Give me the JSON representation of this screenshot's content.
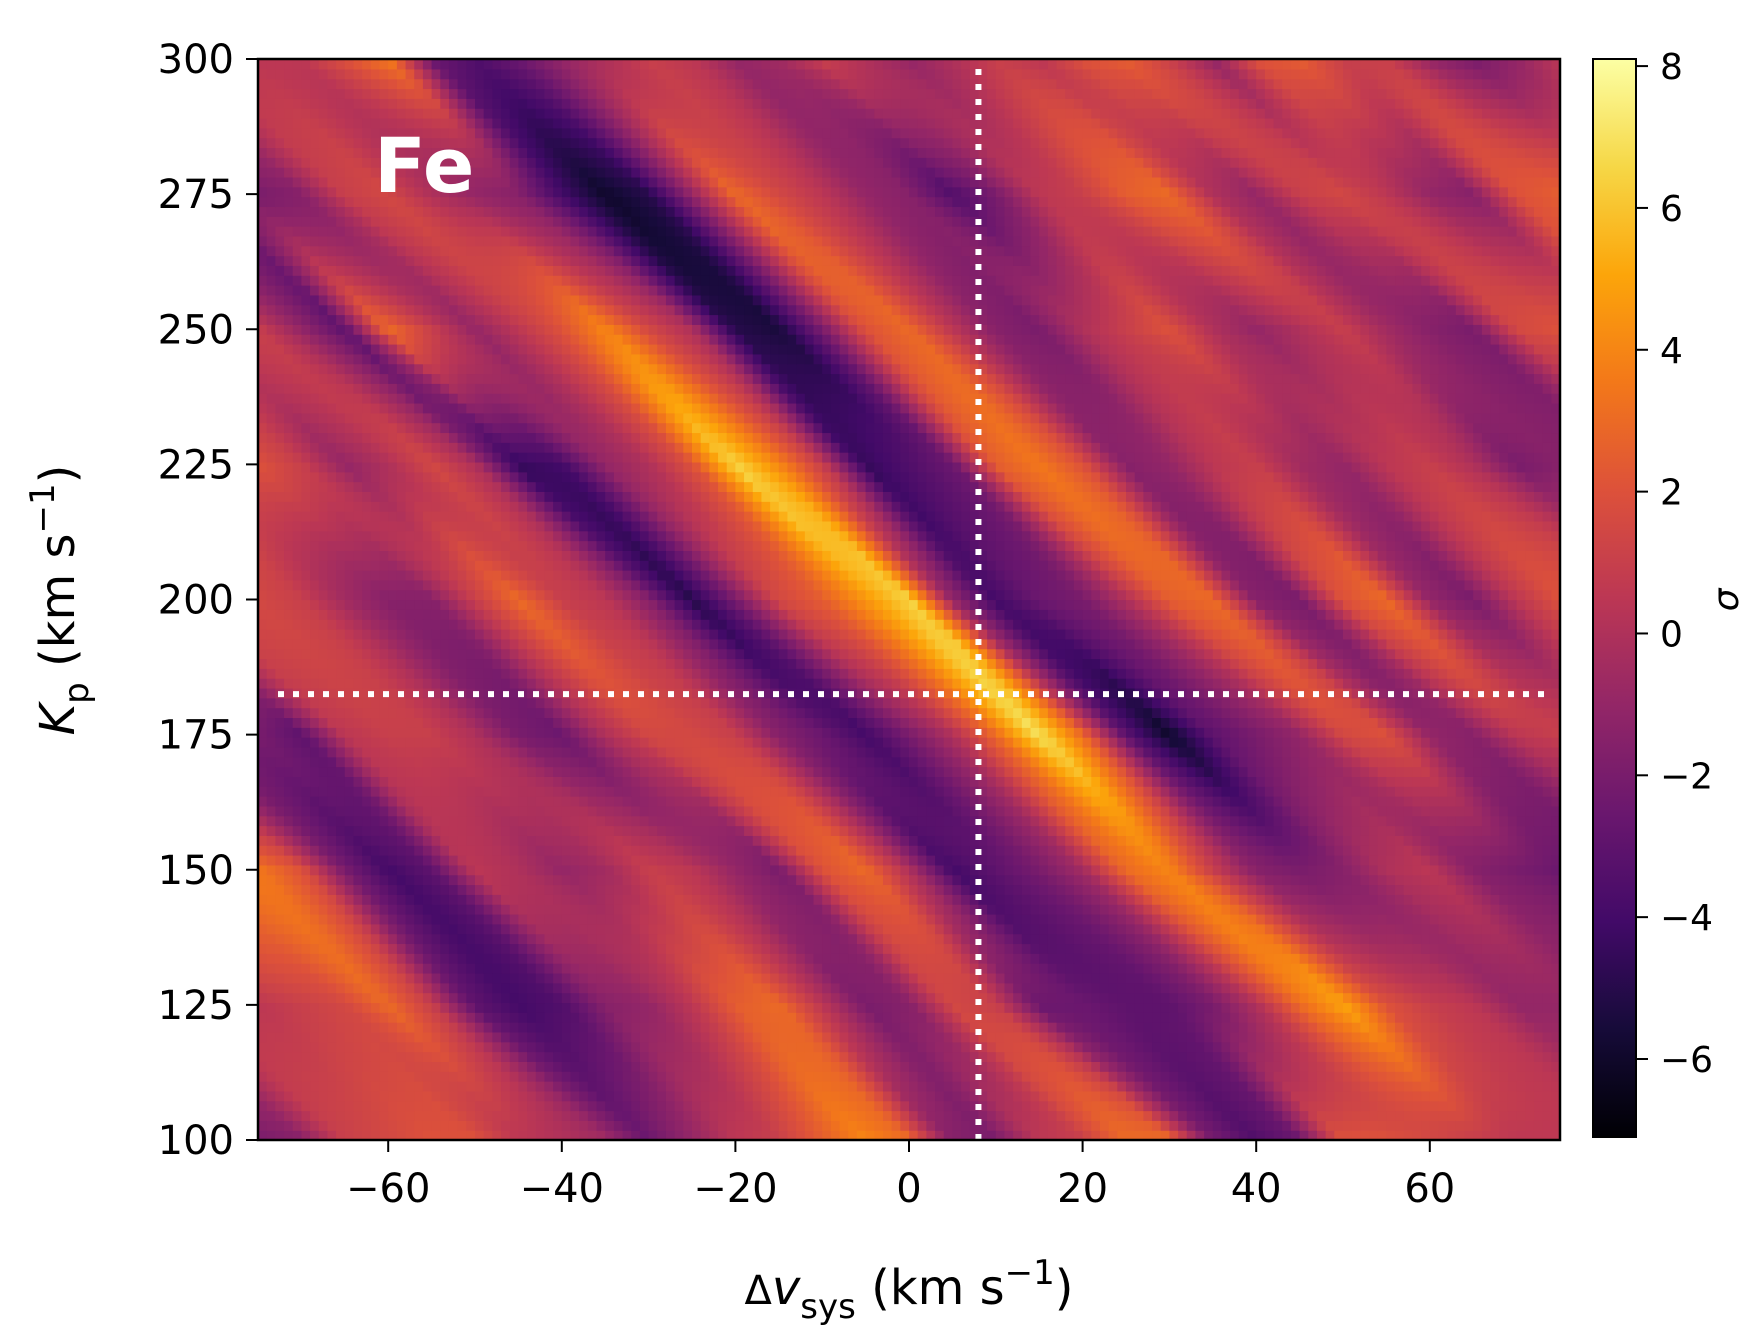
{
  "chart_data": {
    "type": "heatmap",
    "annotation": "Fe",
    "xlabel": {
      "prefix": "Δ",
      "main": "v",
      "sub": "sys",
      "unit": " (km s",
      "sup": "−1",
      "close": ")"
    },
    "ylabel": {
      "main": "K",
      "sub": "p",
      "unit": " (km s",
      "sup": "−1",
      "close": ")"
    },
    "colorbar_label": "σ",
    "colormap": "inferno",
    "clim": [
      -7.1,
      8.1
    ],
    "colorbar_ticks": [
      -6,
      -4,
      -2,
      0,
      2,
      4,
      6,
      8
    ],
    "colorbar_tick_labels": [
      "−6",
      "−4",
      "−2",
      "0",
      "2",
      "4",
      "6",
      "8"
    ],
    "xlim": [
      -75,
      75
    ],
    "ylim": [
      100,
      300
    ],
    "xticks": [
      -60,
      -40,
      -20,
      0,
      20,
      40,
      60
    ],
    "xtick_labels": [
      "−60",
      "−40",
      "−20",
      "0",
      "20",
      "40",
      "60"
    ],
    "yticks": [
      100,
      125,
      150,
      175,
      200,
      225,
      250,
      275,
      300
    ],
    "ytick_labels": [
      "100",
      "125",
      "150",
      "175",
      "200",
      "225",
      "250",
      "275",
      "300"
    ],
    "grid": false,
    "reference_lines": {
      "x": 8.0,
      "y": 182.5,
      "style": "dotted",
      "color": "#ffffff"
    },
    "x": [
      -75,
      -70,
      -65,
      -60,
      -55,
      -50,
      -45,
      -40,
      -35,
      -30,
      -25,
      -20,
      -15,
      -10,
      -5,
      0,
      5,
      10,
      15,
      20,
      25,
      30,
      35,
      40,
      45,
      50,
      55,
      60,
      65,
      70,
      75
    ],
    "y": [
      100,
      125,
      150,
      175,
      200,
      225,
      250,
      275,
      300
    ],
    "z": [
      [
        -2,
        -1.5,
        1,
        1.5,
        2,
        2,
        0.5,
        0,
        -0.5,
        -2.5,
        -1,
        0.5,
        1,
        2.5,
        4,
        3,
        -1.5,
        -2,
        0.5,
        1,
        3,
        3,
        -2,
        -3.5,
        -2.5,
        2,
        2,
        1.5,
        1,
        0.5,
        0.5
      ],
      [
        0.5,
        1,
        1.5,
        3,
        1,
        -3,
        -4,
        -3.5,
        -1.5,
        -1,
        0.5,
        2.5,
        3,
        0.5,
        -2,
        -1.5,
        1.5,
        1,
        -2.5,
        -2.5,
        -3,
        -3,
        -2,
        0,
        3,
        5,
        2,
        1,
        0.5,
        -1,
        -1
      ],
      [
        3.5,
        2,
        -2,
        -4,
        -3,
        0.5,
        0,
        -1,
        -0.5,
        1,
        0.5,
        -1,
        -2,
        2,
        3,
        0,
        -4,
        -3,
        -2,
        -0.5,
        3,
        4,
        1,
        -1.5,
        -2,
        -1.5,
        0,
        0.5,
        -1.5,
        -2,
        -2.5
      ],
      [
        -2,
        -3,
        0.5,
        1,
        1,
        0,
        -2,
        -2.5,
        0,
        1.5,
        1.5,
        1,
        -1.5,
        -2.5,
        -4,
        -2,
        0,
        3,
        7,
        3,
        -3,
        -6,
        -3,
        -2,
        -1,
        1.5,
        2,
        -1,
        -1.5,
        0.5,
        1
      ],
      [
        1.5,
        1,
        -0.5,
        -1.5,
        -1.5,
        1,
        3,
        1,
        0.5,
        -1.5,
        -5,
        -2,
        1.5,
        2.5,
        4.5,
        6.5,
        -1,
        -4,
        -2.5,
        -2,
        0,
        2.5,
        3,
        -1.5,
        -2,
        2,
        3,
        -1,
        -2,
        0.5,
        2
      ],
      [
        2,
        1,
        -1,
        0,
        1.5,
        0,
        -4.5,
        -4,
        -1,
        0,
        2,
        6.5,
        4,
        1,
        -4.5,
        -3.5,
        -2.5,
        2.5,
        3.5,
        2,
        -1.5,
        -1,
        0.5,
        1,
        -0.5,
        -1,
        0.5,
        1,
        0,
        -2,
        -1.5
      ],
      [
        1,
        -1,
        -3,
        3,
        1,
        -1,
        0.5,
        2,
        4,
        1.5,
        0,
        -5,
        -5.5,
        -2,
        2,
        3,
        0.5,
        -1.5,
        -2,
        0,
        1,
        2,
        0,
        -1,
        0,
        1,
        -0.5,
        -1.5,
        -2,
        1.5,
        2
      ],
      [
        -2,
        -1.5,
        1,
        1.5,
        0,
        -1,
        -1.5,
        -4,
        -6,
        -5,
        -1,
        3,
        1.5,
        0.5,
        -1,
        -1.5,
        -3.5,
        -2,
        0.5,
        1,
        2.5,
        3,
        0,
        -1,
        1,
        1.5,
        0.5,
        -1,
        -1.5,
        2,
        2.5
      ],
      [
        0.5,
        0.5,
        2,
        3.5,
        -2.5,
        -3.5,
        -2.5,
        -1,
        0,
        1,
        0.5,
        -1,
        -0.5,
        1,
        0,
        -1,
        0,
        1,
        0.5,
        2,
        2.5,
        1,
        -1,
        2,
        2.5,
        1,
        1,
        -1,
        -2,
        -1,
        0.5
      ]
    ],
    "peak": {
      "x": 8,
      "y": 182,
      "value": 8
    }
  }
}
